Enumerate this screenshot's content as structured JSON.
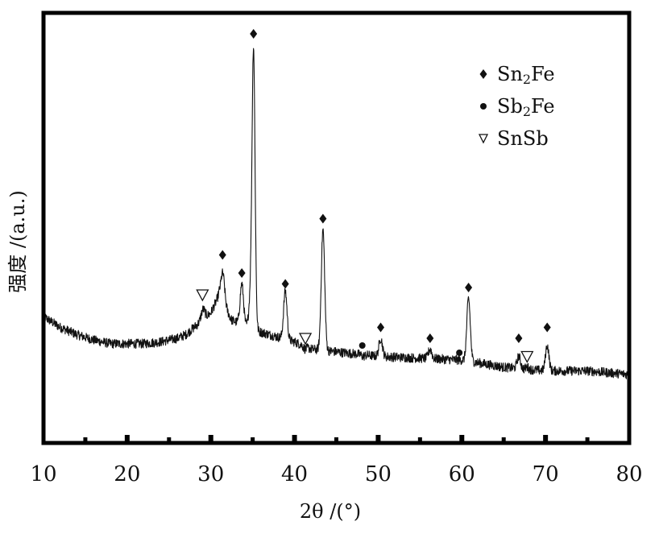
{
  "chart_data": {
    "type": "line",
    "title": "",
    "xlabel": "2θ /(°)",
    "ylabel": "强度 /(a.u.)",
    "xlim": [
      10,
      80
    ],
    "xticks": [
      "10",
      "20",
      "30",
      "40",
      "50",
      "60",
      "70",
      "80"
    ],
    "ylim": [
      0,
      100
    ],
    "yticks_shown": false,
    "grid": false,
    "legend_position": "top-right",
    "colors": {
      "line": "#111111",
      "marker": "#111111",
      "background": "#ffffff",
      "frame": "#000000"
    },
    "legend": [
      {
        "symbol": "diamond",
        "text": "Sn",
        "sub": "2",
        "suffix": "Fe"
      },
      {
        "symbol": "dot",
        "text": "Sb",
        "sub": "2",
        "suffix": "Fe"
      },
      {
        "symbol": "triangle-down",
        "text": "SnSb",
        "sub": "",
        "suffix": ""
      }
    ],
    "baseline": [
      [
        10,
        26
      ],
      [
        12,
        23
      ],
      [
        14,
        21
      ],
      [
        16,
        19.5
      ],
      [
        18,
        18.5
      ],
      [
        20,
        18.5
      ],
      [
        22,
        18.5
      ],
      [
        24,
        19
      ],
      [
        26,
        20
      ],
      [
        27,
        21
      ],
      [
        28,
        23
      ],
      [
        29,
        25
      ],
      [
        30,
        27
      ],
      [
        30.6,
        30
      ],
      [
        31,
        32
      ],
      [
        31.6,
        29
      ],
      [
        32.5,
        25
      ],
      [
        33.5,
        24
      ],
      [
        35.5,
        22
      ],
      [
        37,
        21
      ],
      [
        38.5,
        20
      ],
      [
        40,
        19
      ],
      [
        42,
        17
      ],
      [
        44,
        16.5
      ],
      [
        46,
        16
      ],
      [
        48,
        15.5
      ],
      [
        50,
        15
      ],
      [
        55,
        14.5
      ],
      [
        60,
        14
      ],
      [
        65,
        12
      ],
      [
        70,
        11
      ],
      [
        75,
        11
      ],
      [
        80,
        10
      ]
    ],
    "peaks": [
      {
        "x": 29.1,
        "y": 28,
        "width": 0.5,
        "phase": "SnSb"
      },
      {
        "x": 31.4,
        "y": 38,
        "width": 0.5,
        "phase": "Sn2Fe"
      },
      {
        "x": 33.7,
        "y": 35,
        "width": 0.45,
        "phase": "Sn2Fe"
      },
      {
        "x": 34.7,
        "y": 30,
        "width": 0.4,
        "phase": ""
      },
      {
        "x": 35.1,
        "y": 100,
        "width": 0.4,
        "phase": "Sn2Fe"
      },
      {
        "x": 38.9,
        "y": 33,
        "width": 0.45,
        "phase": "Sn2Fe"
      },
      {
        "x": 41.3,
        "y": 17,
        "width": 0.4,
        "phase": "SnSb"
      },
      {
        "x": 43.4,
        "y": 50,
        "width": 0.45,
        "phase": "Sn2Fe"
      },
      {
        "x": 48.2,
        "y": 15,
        "width": 0.4,
        "phase": "Sb2Fe"
      },
      {
        "x": 50.3,
        "y": 20,
        "width": 0.45,
        "phase": "Sn2Fe"
      },
      {
        "x": 56.2,
        "y": 17,
        "width": 0.45,
        "phase": "Sn2Fe"
      },
      {
        "x": 59.7,
        "y": 14,
        "width": 0.4,
        "phase": "Sb2Fe"
      },
      {
        "x": 60.8,
        "y": 31,
        "width": 0.45,
        "phase": "Sn2Fe"
      },
      {
        "x": 66.8,
        "y": 15,
        "width": 0.45,
        "phase": "Sn2Fe"
      },
      {
        "x": 67.8,
        "y": 12,
        "width": 0.4,
        "phase": "SnSb"
      },
      {
        "x": 70.2,
        "y": 18,
        "width": 0.45,
        "phase": "Sn2Fe"
      }
    ],
    "markers": [
      {
        "x": 29.0,
        "y": 32,
        "symbol": "triangle-down"
      },
      {
        "x": 31.4,
        "y": 43,
        "symbol": "diamond"
      },
      {
        "x": 33.7,
        "y": 38,
        "symbol": "diamond"
      },
      {
        "x": 35.1,
        "y": 104,
        "symbol": "diamond"
      },
      {
        "x": 38.9,
        "y": 35,
        "symbol": "diamond"
      },
      {
        "x": 41.3,
        "y": 20,
        "symbol": "triangle-down"
      },
      {
        "x": 43.4,
        "y": 53,
        "symbol": "diamond"
      },
      {
        "x": 48.1,
        "y": 18,
        "symbol": "dot"
      },
      {
        "x": 50.3,
        "y": 23,
        "symbol": "diamond"
      },
      {
        "x": 56.2,
        "y": 20,
        "symbol": "diamond"
      },
      {
        "x": 59.7,
        "y": 16,
        "symbol": "dot"
      },
      {
        "x": 60.8,
        "y": 34,
        "symbol": "diamond"
      },
      {
        "x": 66.8,
        "y": 20,
        "symbol": "diamond"
      },
      {
        "x": 67.8,
        "y": 15,
        "symbol": "triangle-down"
      },
      {
        "x": 70.2,
        "y": 23,
        "symbol": "diamond"
      }
    ]
  }
}
